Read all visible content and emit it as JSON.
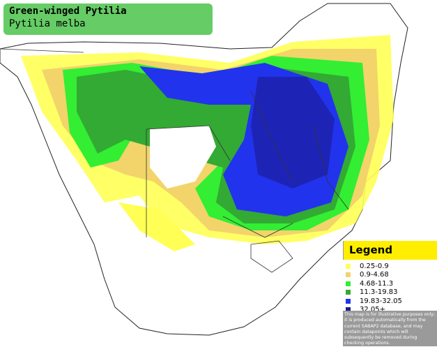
{
  "header": {
    "title": "Green-winged Pytilia",
    "subtitle": "Pytilia melba"
  },
  "legend": {
    "title": "Legend",
    "items": [
      {
        "label": "0.25-0.9",
        "color": "#ffff55"
      },
      {
        "label": "0.9-4.68",
        "color": "#f2d46a"
      },
      {
        "label": "4.68-11.3",
        "color": "#33ee33"
      },
      {
        "label": "11.3-19.83",
        "color": "#33aa33"
      },
      {
        "label": "19.83-32.05",
        "color": "#2233ee"
      },
      {
        "label": "32.05+",
        "color": "#1a1a90"
      }
    ],
    "note": "This map is for illustrative purposes only; it is produced automatically from the current SABAP2 database, and may contain datapoints which will subsequently be removed during checking operations."
  }
}
